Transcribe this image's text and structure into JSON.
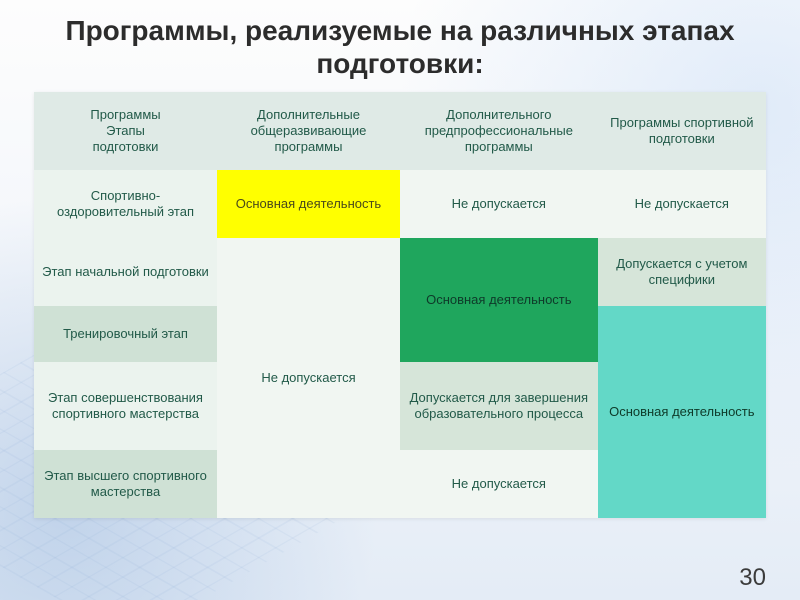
{
  "title": "Программы, реализуемые на различных этапах подготовки:",
  "page_number": "30",
  "colors": {
    "header_bg": "#dfeae6",
    "col0_light": "#ebf3ee",
    "col0_shade": "#cfe1d5",
    "body_light": "#f1f6f2",
    "body_shade": "#d6e5d9",
    "yellow": "#ffff00",
    "green": "#1fa65d",
    "cyan": "#63d8c7",
    "text": "#225a49",
    "text_on_green": "#0e3a29"
  },
  "table": {
    "col_widths": [
      "25%",
      "25%",
      "27%",
      "23%"
    ],
    "header": [
      "Программы\nЭтапы\nподготовки",
      "Дополнительные общеразвивающие программы",
      "Дополнительного предпрофессиональные программы",
      "Программы спортивной подготовки"
    ],
    "rows": [
      {
        "stage": "Спортивно-оздоровительный этап",
        "c1": {
          "text": "Основная деятельность",
          "fill": "yellow"
        },
        "c2": {
          "text": "Не допускается",
          "fill": "body_light"
        },
        "c3": {
          "text": "Не допускается",
          "fill": "body_light"
        }
      },
      {
        "stage": "Этап начальной подготовки",
        "c1": {
          "text": "Не допускается",
          "rowspan": 4,
          "fill": "body_light"
        },
        "c2": {
          "text": "Основная деятельность",
          "rowspan": 2,
          "fill": "green"
        },
        "c3": {
          "text": "Допускается с учетом специфики",
          "fill": "body_shade"
        }
      },
      {
        "stage": "Тренировочный этап",
        "c3": {
          "text": "Основная деятельность",
          "rowspan": 3,
          "fill": "cyan"
        }
      },
      {
        "stage": "Этап совершенствования спортивного мастерства",
        "c2": {
          "text": "Допускается для завершения образовательного процесса",
          "fill": "body_shade"
        }
      },
      {
        "stage": "Этап высшего спортивного мастерства",
        "c2": {
          "text": "Не допускается",
          "fill": "body_light"
        }
      }
    ]
  }
}
